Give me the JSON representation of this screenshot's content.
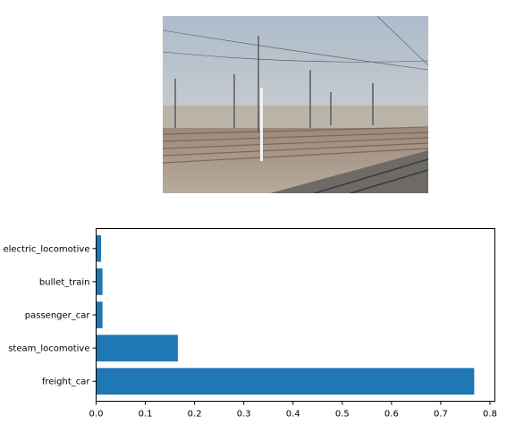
{
  "photo": {
    "description_icon": "railway-yard-photo-icon"
  },
  "chart_data": {
    "type": "bar",
    "orientation": "horizontal",
    "categories": [
      "electric_locomotive",
      "bullet_train",
      "passenger_car",
      "steam_locomotive",
      "freight_car"
    ],
    "values": [
      0.01,
      0.013,
      0.013,
      0.166,
      0.768
    ],
    "title": "",
    "xlabel": "",
    "ylabel": "",
    "xlim": [
      0,
      0.81
    ],
    "xticks": [
      "0.0",
      "0.1",
      "0.2",
      "0.3",
      "0.4",
      "0.5",
      "0.6",
      "0.7",
      "0.8"
    ],
    "grid": false,
    "bar_color": "#1f77b4"
  }
}
